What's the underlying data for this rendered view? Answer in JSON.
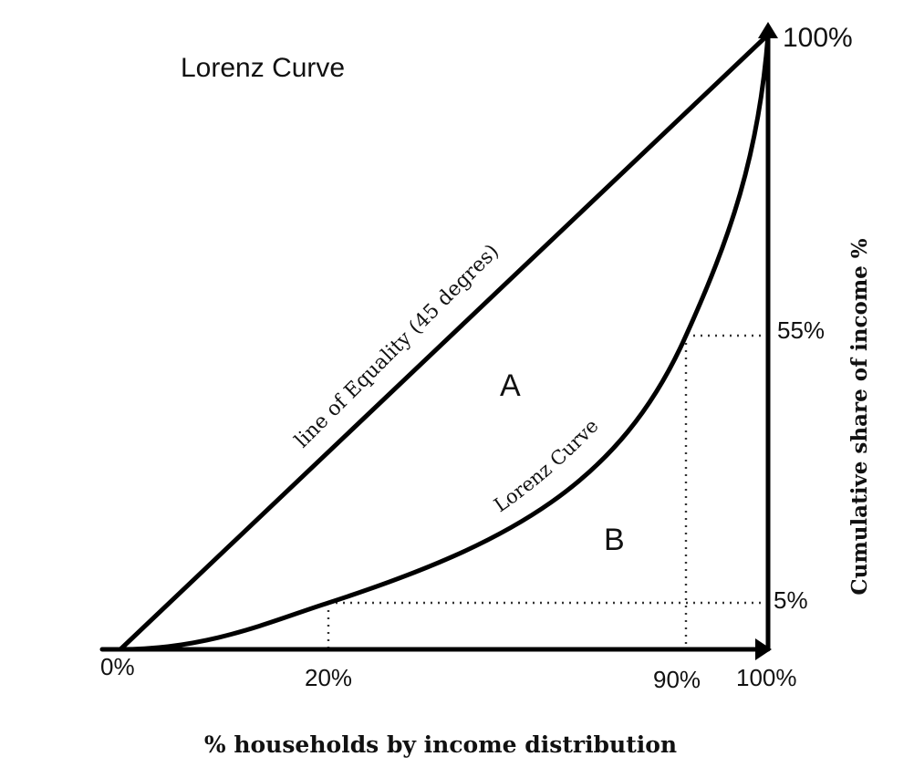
{
  "diagram": {
    "title": "Lorenz Curve",
    "equality_line_label": "line of Equality (45 degres)",
    "lorenz_curve_label": "Lorenz Curve",
    "region_a_label": "A",
    "region_b_label": "B",
    "x_axis_label": "% households by income distribution",
    "y_axis_label": "Cumulative share of income %",
    "x_ticks": [
      "0%",
      "20%",
      "90%",
      "100%"
    ],
    "y_ticks": [
      "5%",
      "55%",
      "100%"
    ],
    "colors": {
      "line": "#000000",
      "text": "#111111",
      "guide": "#333333"
    }
  },
  "chart_data": {
    "type": "line",
    "title": "Lorenz Curve",
    "xlabel": "% households by income distribution",
    "ylabel": "Cumulative share of income %",
    "xlim": [
      0,
      100
    ],
    "ylim": [
      0,
      100
    ],
    "series": [
      {
        "name": "line of Equality (45 degres)",
        "x": [
          0,
          100
        ],
        "y": [
          0,
          100
        ]
      },
      {
        "name": "Lorenz Curve",
        "x": [
          0,
          20,
          90,
          100
        ],
        "y": [
          0,
          5,
          55,
          100
        ]
      }
    ],
    "guides": [
      {
        "x": 20,
        "y": 5
      },
      {
        "x": 90,
        "y": 55
      }
    ]
  }
}
